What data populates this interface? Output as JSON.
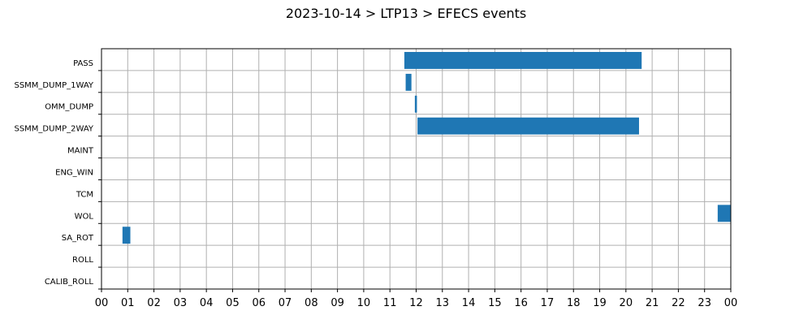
{
  "chart_data": {
    "type": "gantt",
    "title": "2023-10-14 > LTP13 > EFECS events",
    "xlabel": "",
    "ylabel": "",
    "x_unit": "hour of day",
    "xlim": [
      0,
      24
    ],
    "x_tick_labels": [
      "00",
      "01",
      "02",
      "03",
      "04",
      "05",
      "06",
      "07",
      "08",
      "09",
      "10",
      "11",
      "12",
      "13",
      "14",
      "15",
      "16",
      "17",
      "18",
      "19",
      "20",
      "21",
      "22",
      "23",
      "00"
    ],
    "categories": [
      "PASS",
      "SSMM_DUMP_1WAY",
      "OMM_DUMP",
      "SSMM_DUMP_2WAY",
      "MAINT",
      "ENG_WIN",
      "TCM",
      "WOL",
      "SA_ROT",
      "ROLL",
      "CALIB_ROLL"
    ],
    "grid": true,
    "bar_color": "#1f77b4",
    "events": [
      {
        "category": "PASS",
        "start": 11.55,
        "end": 20.6
      },
      {
        "category": "SSMM_DUMP_1WAY",
        "start": 11.6,
        "end": 11.82
      },
      {
        "category": "OMM_DUMP",
        "start": 11.95,
        "end": 12.03
      },
      {
        "category": "SSMM_DUMP_2WAY",
        "start": 12.05,
        "end": 20.5
      },
      {
        "category": "WOL",
        "start": 23.5,
        "end": 24.0
      },
      {
        "category": "SA_ROT",
        "start": 0.8,
        "end": 1.1
      }
    ]
  }
}
